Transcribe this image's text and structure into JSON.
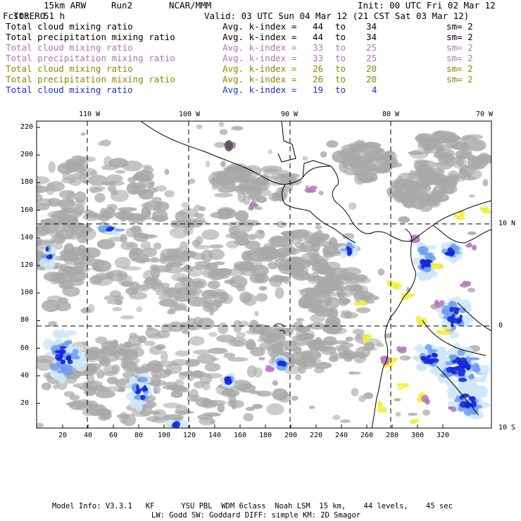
{
  "header": {
    "model": "TORERO",
    "resolution": "15km ARW",
    "run": "Run2",
    "org": "NCAR/MMM",
    "init": "Init: 00 UTC Fri 02 Mar 12",
    "fcst_label": "Fcst:",
    "fcst_value": "51 h",
    "valid": "Valid: 03 UTC Sun 04 Mar 12 (21 CST Sat 03 Mar 12)"
  },
  "legend": [
    {
      "field": "Total cloud mixing ratio",
      "index": "Avg. k-index =",
      "from": "44",
      "to_word": "to",
      "to": "34",
      "sm": "sm= 2",
      "color": "#000000"
    },
    {
      "field": "Total precipitation mixing ratio",
      "index": "Avg. k-index =",
      "from": "44",
      "to_word": "to",
      "to": "34",
      "sm": "sm= 2",
      "color": "#000000"
    },
    {
      "field": "Total cloud mixing ratio",
      "index": "Avg. k-index =",
      "from": "33",
      "to_word": "to",
      "to": "25",
      "sm": "sm= 2",
      "color": "#b070c0"
    },
    {
      "field": "Total precipitation mixing ratio",
      "index": "Avg. k-index =",
      "from": "33",
      "to_word": "to",
      "to": "25",
      "sm": "sm= 2",
      "color": "#b070c0"
    },
    {
      "field": "Total cloud mixing ratio",
      "index": "Avg. k-index =",
      "from": "26",
      "to_word": "to",
      "to": "20",
      "sm": "sm= 2",
      "color": "#8a8a00"
    },
    {
      "field": "Total precipitation mixing ratio",
      "index": "Avg. k-index =",
      "from": "26",
      "to_word": "to",
      "to": "20",
      "sm": "sm= 2",
      "color": "#8a8a00"
    },
    {
      "field": "Total cloud mixing ratio",
      "index": "Avg. k-index =",
      "from": "19",
      "to_word": "to",
      "to": "4",
      "sm": "",
      "color": "#2030e0"
    }
  ],
  "axes": {
    "top_lon": [
      "110 W",
      "100 W",
      "90 W",
      "80 W",
      "70 W"
    ],
    "right_lat": [
      "10 N",
      "0",
      "10 S"
    ],
    "left_ticks": [
      "220",
      "200",
      "180",
      "160",
      "140",
      "120",
      "100",
      "80",
      "60",
      "40",
      "20"
    ],
    "bottom_ticks": [
      "20",
      "40",
      "60",
      "80",
      "100",
      "120",
      "140",
      "160",
      "180",
      "200",
      "220",
      "240",
      "260",
      "280",
      "300",
      "320"
    ]
  },
  "footer": {
    "line1": "Model Info: V3.3.1   KF      YSU PBL  WDM 6class  Noah LSM  15 km,    44 levels,    45 sec",
    "line2": "LW: Godd SW: Goddard DIFF: simple KM: 2D Smagor"
  },
  "colors": {
    "cloud_gray": "#a9a9a9",
    "precip_purple": "#b47cc0",
    "light_blue": "#cfe6f8",
    "mid_blue": "#6f9ef0",
    "deep_blue": "#1428d8",
    "yellow": "#f0f040"
  }
}
